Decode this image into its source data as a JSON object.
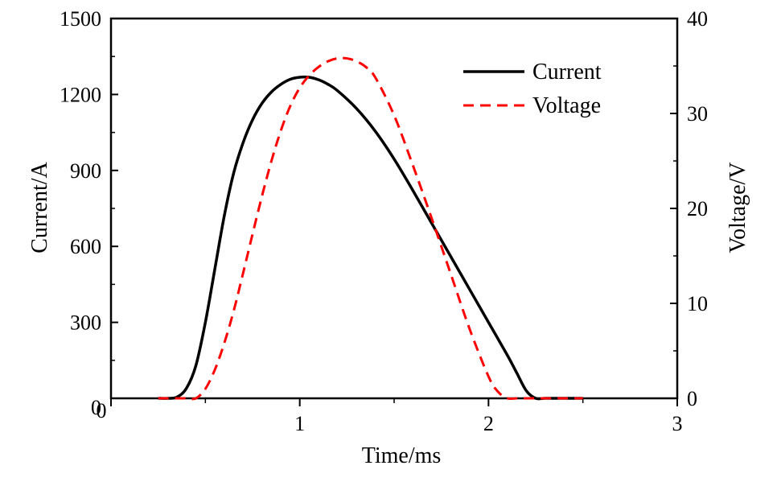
{
  "chart_data": {
    "type": "line",
    "title": "",
    "xlabel": "Time/ms",
    "ylabel_left": "Current/A",
    "ylabel_right": "Voltage/V",
    "xlim": [
      0,
      3
    ],
    "ylim_left": [
      0,
      1500
    ],
    "ylim_right": [
      0,
      40
    ],
    "x_ticks": [
      0,
      1,
      2,
      3
    ],
    "y_left_ticks": [
      0,
      300,
      600,
      900,
      1200,
      1500
    ],
    "y_right_ticks": [
      0,
      10,
      20,
      30,
      40
    ],
    "x_tick_labels": [
      "0",
      "1",
      "2",
      "3"
    ],
    "y_left_tick_labels": [
      "0",
      "300",
      "600",
      "900",
      "1200",
      "1500"
    ],
    "y_right_tick_labels": [
      "0",
      "10",
      "20",
      "30",
      "40"
    ],
    "grid": false,
    "legend_position": "top-right",
    "series": [
      {
        "name": "Current",
        "axis": "left",
        "color": "#000000",
        "style": "solid",
        "x": [
          0.25,
          0.3,
          0.35,
          0.4,
          0.45,
          0.5,
          0.55,
          0.6,
          0.65,
          0.7,
          0.75,
          0.8,
          0.85,
          0.9,
          0.95,
          1.0,
          1.05,
          1.1,
          1.15,
          1.2,
          1.3,
          1.4,
          1.5,
          1.6,
          1.7,
          1.8,
          1.9,
          2.0,
          2.1,
          2.15,
          2.2,
          2.25,
          2.3,
          2.4,
          2.5
        ],
        "y": [
          0,
          0,
          5,
          40,
          130,
          300,
          510,
          720,
          890,
          1010,
          1100,
          1165,
          1210,
          1240,
          1260,
          1268,
          1268,
          1258,
          1240,
          1215,
          1145,
          1055,
          945,
          820,
          690,
          560,
          430,
          300,
          170,
          100,
          30,
          0,
          0,
          0,
          0
        ]
      },
      {
        "name": "Voltage",
        "axis": "right",
        "color": "#ff0000",
        "style": "dashed",
        "x": [
          0.25,
          0.3,
          0.35,
          0.4,
          0.45,
          0.5,
          0.55,
          0.6,
          0.65,
          0.7,
          0.75,
          0.8,
          0.85,
          0.9,
          0.95,
          1.0,
          1.05,
          1.1,
          1.15,
          1.2,
          1.25,
          1.3,
          1.35,
          1.4,
          1.5,
          1.6,
          1.7,
          1.8,
          1.9,
          2.0,
          2.05,
          2.1,
          2.15,
          2.2,
          2.3,
          2.4,
          2.5
        ],
        "y": [
          0,
          0,
          0,
          0,
          0,
          1.0,
          3.0,
          5.8,
          9.2,
          13.2,
          17.3,
          21.3,
          25.0,
          28.2,
          30.8,
          32.7,
          34.0,
          34.9,
          35.5,
          35.8,
          35.8,
          35.5,
          34.9,
          33.8,
          29.8,
          24.5,
          18.9,
          13.1,
          7.3,
          2.3,
          0.7,
          0,
          0,
          0,
          0,
          0,
          0
        ]
      }
    ]
  }
}
